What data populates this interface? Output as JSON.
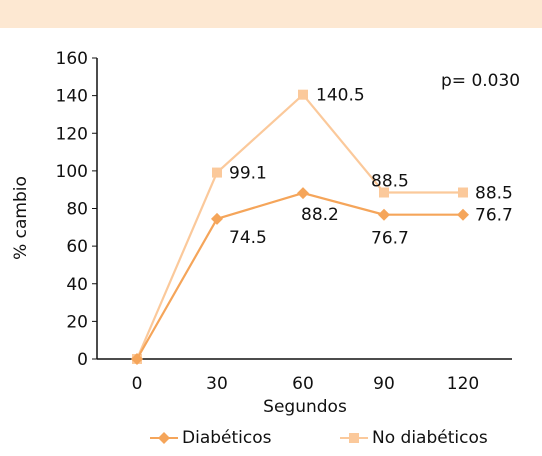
{
  "chart_data": {
    "type": "line",
    "x": [
      0,
      30,
      60,
      90,
      120
    ],
    "xlabel": "Segundos",
    "ylabel": "% cambio",
    "ylim": [
      0,
      160
    ],
    "yticks": [
      0,
      20,
      40,
      60,
      80,
      100,
      120,
      140,
      160
    ],
    "annotation": "p= 0.030",
    "series": [
      {
        "name": "Diabéticos",
        "values": [
          0,
          74.5,
          88.2,
          76.7,
          76.7
        ],
        "labels": [
          "",
          "74.5",
          "88.2",
          "76.7",
          "76.7"
        ],
        "color": "#f5a55a",
        "marker": "diamond"
      },
      {
        "name": "No diabéticos",
        "values": [
          0,
          99.1,
          140.5,
          88.5,
          88.5
        ],
        "labels": [
          "",
          "99.1",
          "140.5",
          "88.5",
          "88.5"
        ],
        "color": "#fbc99b",
        "marker": "square"
      }
    ]
  }
}
